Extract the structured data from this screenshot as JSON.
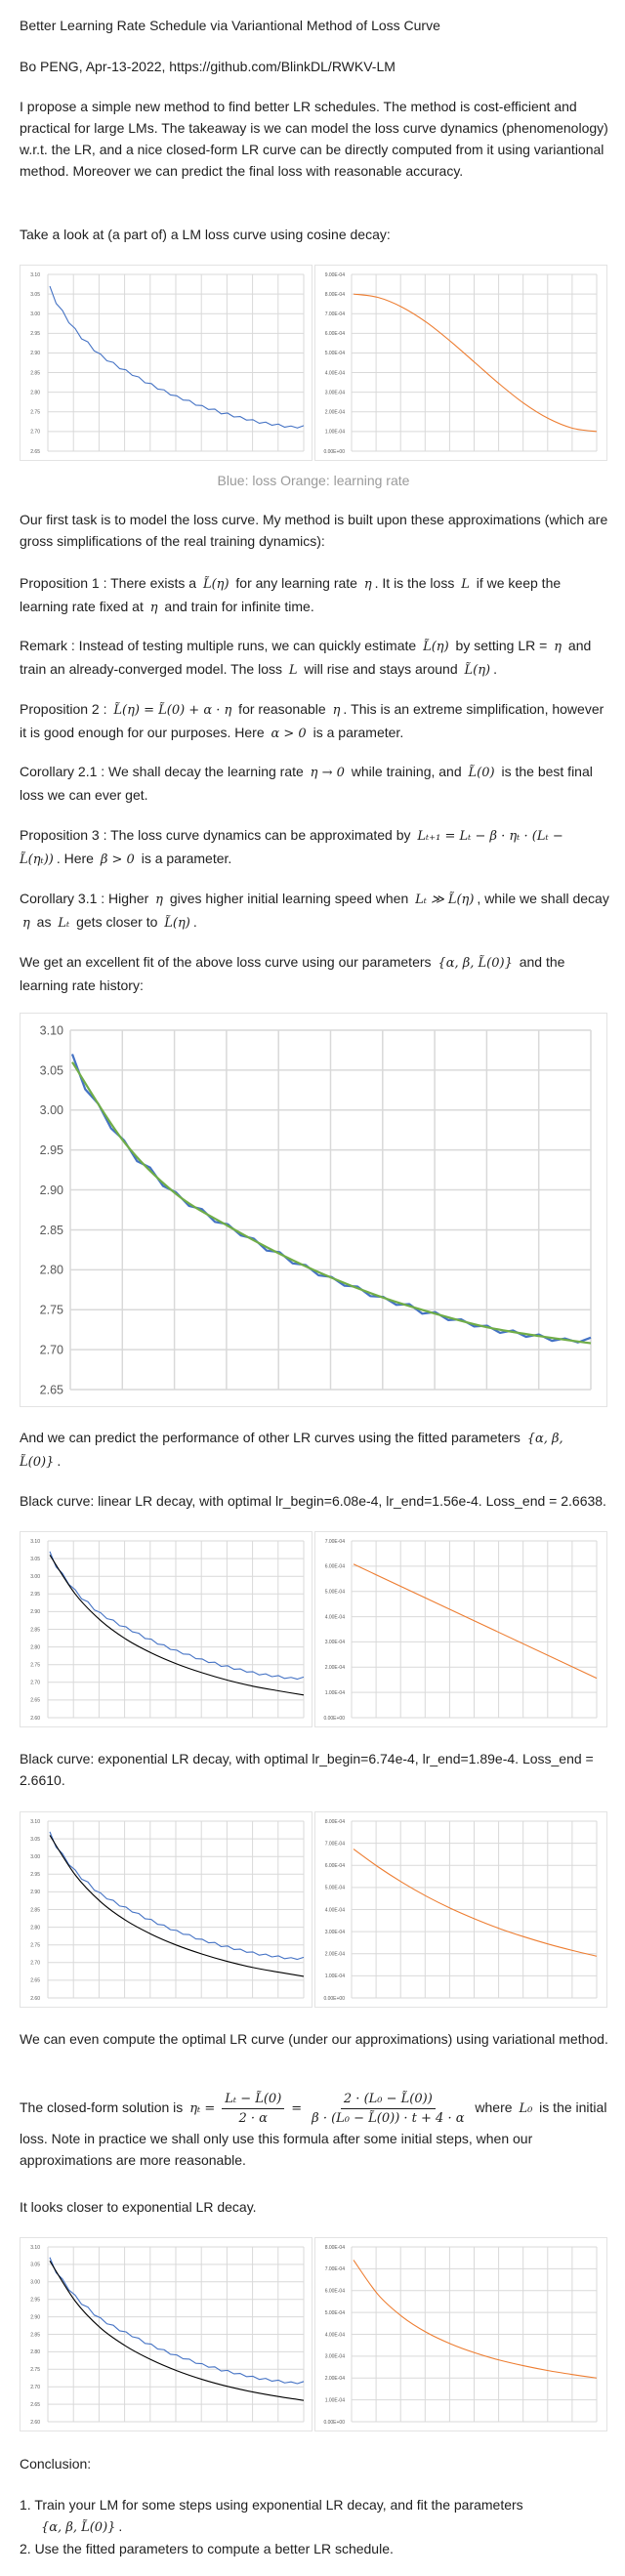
{
  "title": "Better Learning Rate Schedule via Variantional Method of Loss Curve",
  "byline": "Bo PENG, Apr-13-2022, https://github.com/BlinkDL/RWKV-LM",
  "intro": "I propose a simple new method to find better LR schedules. The method is cost-efficient and practical for large LMs. The takeaway is we can model the loss curve dynamics (phenomenology) w.r.t. the LR, and a nice closed-form LR curve can be directly computed from it using variantional method. Moreover we can predict the final loss with reasonable accuracy.",
  "take_look": "Take a look at (a part of) a LM loss curve using cosine decay:",
  "caption": "Blue: loss Orange: learning rate",
  "first_task": "Our first task is to model the loss curve. My method is built upon these approximations (which are gross simplifications of the real training dynamics):",
  "prop1": [
    {
      "text": "Proposition 1 : There exists a "
    },
    {
      "text": "L̃(η)",
      "math": true
    },
    {
      "text": " for any learning rate "
    },
    {
      "text": "η",
      "math": true
    },
    {
      "text": ". It is the loss "
    },
    {
      "text": "L",
      "math": true
    },
    {
      "text": " if we keep the learning rate fixed at "
    },
    {
      "text": "η",
      "math": true
    },
    {
      "text": " and train for infinite time."
    }
  ],
  "remark": [
    {
      "text": "Remark : Instead of testing multiple runs, we can quickly estimate "
    },
    {
      "text": "L̃(η)",
      "math": true
    },
    {
      "text": " by setting LR = "
    },
    {
      "text": "η",
      "math": true
    },
    {
      "text": " and train an already-converged model. The loss "
    },
    {
      "text": "L",
      "math": true
    },
    {
      "text": " will rise and stays around "
    },
    {
      "text": "L̃(η)",
      "math": true
    },
    {
      "text": "."
    }
  ],
  "prop2": [
    {
      "text": "Proposition 2 : "
    },
    {
      "text": "L̃(η) = L̃(0) + α · η",
      "math": true
    },
    {
      "text": " for reasonable "
    },
    {
      "text": "η",
      "math": true
    },
    {
      "text": ". This is an extreme simplification, however it is good enough for our purposes. Here "
    },
    {
      "text": "α > 0",
      "math": true
    },
    {
      "text": " is a parameter."
    }
  ],
  "cor21": [
    {
      "text": "Corollary 2.1 : We shall decay the learning rate "
    },
    {
      "text": "η → 0",
      "math": true
    },
    {
      "text": " while training, and "
    },
    {
      "text": "L̃(0)",
      "math": true
    },
    {
      "text": " is the best final loss we can ever get."
    }
  ],
  "prop3": [
    {
      "text": "Proposition 3 : The loss curve dynamics can be approximated by "
    },
    {
      "text": "Lₜ₊₁ = Lₜ − β · ηₜ · (Lₜ − L̃(ηₜ))",
      "math": true
    },
    {
      "text": ". Here "
    },
    {
      "text": "β > 0",
      "math": true
    },
    {
      "text": " is a parameter."
    }
  ],
  "cor31": [
    {
      "text": "Corollary 3.1 : Higher "
    },
    {
      "text": "η",
      "math": true
    },
    {
      "text": " gives higher initial learning speed when "
    },
    {
      "text": "Lₜ ≫ L̃(η)",
      "math": true
    },
    {
      "text": ", while we shall decay "
    },
    {
      "text": "η",
      "math": true
    },
    {
      "text": " as "
    },
    {
      "text": "Lₜ",
      "math": true
    },
    {
      "text": " gets closer to "
    },
    {
      "text": "L̃(η)",
      "math": true
    },
    {
      "text": "."
    }
  ],
  "fit": [
    {
      "text": "We get an excellent fit of the above loss curve using our parameters "
    },
    {
      "text": "{α, β, L̃(0)}",
      "math": true
    },
    {
      "text": " and the learning rate history:"
    }
  ],
  "predict": [
    {
      "text": "And we can predict the performance of other LR curves using the fitted parameters "
    },
    {
      "text": "{α, β, L̃(0)}",
      "math": true
    },
    {
      "text": "."
    }
  ],
  "linear_text": "Black curve: linear LR decay, with optimal lr_begin=6.08e-4, lr_end=1.56e-4. Loss_end = 2.6638.",
  "exp_text": "Black curve: exponential LR decay, with optimal lr_begin=6.74e-4, lr_end=1.89e-4. Loss_end = 2.6610.",
  "even_text": "We can even compute the optimal LR curve (under our approximations) using variational method.",
  "closed_form": {
    "prefix": "The closed-form solution is",
    "lhs": "ηₜ =",
    "frac1_num": "Lₜ − L̃(0)",
    "frac1_den": "2 · α",
    "eq": "=",
    "frac2_num": "2 · (L₀ − L̃(0))",
    "frac2_den": "β · (L₀ − L̃(0)) · t + 4 · α",
    "where": " where ",
    "l0": "L₀",
    "suffix": " is the initial loss. Note in practice we shall only use this formula after some initial steps, when our approximations are more reasonable."
  },
  "looks_text": "It looks closer to exponential LR decay.",
  "conclusion": "Conclusion:",
  "steps": [
    {
      "text": "1. Train your LM for some steps using exponential LR decay, and fit the parameters",
      "math": "{α, β, L̃(0)}",
      "end": "."
    },
    {
      "text": "2. Use the fitted parameters to compute a better LR schedule."
    }
  ],
  "colors": {
    "loss": "#4472c4",
    "lr": "#ed7d31",
    "fit": "#70ad47",
    "predicted": "#000000",
    "grid": "#d9d9d9"
  },
  "chart_data": [
    {
      "id": "cosine-loss",
      "type": "line",
      "ylim": [
        2.65,
        3.1
      ],
      "yticks": [
        "2.65",
        "2.70",
        "2.75",
        "2.80",
        "2.85",
        "2.90",
        "2.95",
        "3.00",
        "3.05",
        "3.10"
      ],
      "grid": true,
      "series": [
        {
          "color": "#4472c4",
          "values": [
            3.07,
            3.026,
            3.008,
            2.977,
            2.962,
            2.936,
            2.928,
            2.905,
            2.897,
            2.88,
            2.876,
            2.86,
            2.857,
            2.843,
            2.839,
            2.824,
            2.822,
            2.808,
            2.806,
            2.793,
            2.791,
            2.78,
            2.779,
            2.767,
            2.766,
            2.756,
            2.757,
            2.745,
            2.747,
            2.737,
            2.738,
            2.729,
            2.73,
            2.721,
            2.724,
            2.716,
            2.719,
            2.711,
            2.714,
            2.709,
            2.715
          ]
        }
      ]
    },
    {
      "id": "cosine-lr",
      "type": "line",
      "ylim": [
        0,
        0.0009
      ],
      "yticks": [
        "0.00E+00",
        "1.00E-04",
        "2.00E-04",
        "3.00E-04",
        "4.00E-04",
        "5.00E-04",
        "6.00E-04",
        "7.00E-04",
        "8.00E-04",
        "9.00E-04"
      ],
      "grid": true,
      "series": [
        {
          "color": "#ed7d31",
          "smooth": true,
          "values": [
            0.0008,
            0.000783,
            0.000733,
            0.000656,
            0.000558,
            0.00045,
            0.000342,
            0.000244,
            0.000167,
            0.000117,
            0.0001
          ]
        }
      ]
    },
    {
      "id": "fit-loss",
      "type": "line",
      "ylim": [
        2.65,
        3.1
      ],
      "yticks": [
        "2.65",
        "2.70",
        "2.75",
        "2.80",
        "2.85",
        "2.90",
        "2.95",
        "3.00",
        "3.05",
        "3.10"
      ],
      "grid": true,
      "series": [
        {
          "color": "#4472c4",
          "values": [
            3.07,
            3.026,
            3.008,
            2.977,
            2.962,
            2.936,
            2.928,
            2.905,
            2.897,
            2.88,
            2.876,
            2.86,
            2.857,
            2.843,
            2.839,
            2.824,
            2.822,
            2.808,
            2.806,
            2.793,
            2.791,
            2.78,
            2.779,
            2.767,
            2.766,
            2.756,
            2.757,
            2.745,
            2.747,
            2.737,
            2.738,
            2.729,
            2.73,
            2.721,
            2.724,
            2.716,
            2.719,
            2.711,
            2.714,
            2.709,
            2.715
          ]
        },
        {
          "color": "#70ad47",
          "smooth": true,
          "values": [
            3.06,
            2.96,
            2.895,
            2.855,
            2.82,
            2.79,
            2.765,
            2.745,
            2.728,
            2.717,
            2.708
          ]
        }
      ]
    },
    {
      "id": "linear-loss",
      "type": "line",
      "ylim": [
        2.6,
        3.1
      ],
      "yticks": [
        "2.60",
        "2.65",
        "2.70",
        "2.75",
        "2.80",
        "2.85",
        "2.90",
        "2.95",
        "3.00",
        "3.05",
        "3.10"
      ],
      "grid": true,
      "series": [
        {
          "color": "#4472c4",
          "values": [
            3.07,
            3.026,
            3.008,
            2.977,
            2.962,
            2.936,
            2.928,
            2.905,
            2.897,
            2.88,
            2.876,
            2.86,
            2.857,
            2.843,
            2.839,
            2.824,
            2.822,
            2.808,
            2.806,
            2.793,
            2.791,
            2.78,
            2.779,
            2.767,
            2.766,
            2.756,
            2.757,
            2.745,
            2.747,
            2.737,
            2.738,
            2.729,
            2.73,
            2.721,
            2.724,
            2.716,
            2.719,
            2.711,
            2.714,
            2.709,
            2.715
          ]
        },
        {
          "color": "#000000",
          "smooth": true,
          "values": [
            3.06,
            2.95,
            2.875,
            2.822,
            2.783,
            2.752,
            2.727,
            2.706,
            2.689,
            2.676,
            2.664
          ]
        }
      ]
    },
    {
      "id": "linear-lr",
      "type": "line",
      "ylim": [
        0,
        0.0007
      ],
      "yticks": [
        "0.00E+00",
        "1.00E-04",
        "2.00E-04",
        "3.00E-04",
        "4.00E-04",
        "5.00E-04",
        "6.00E-04",
        "7.00E-04"
      ],
      "grid": true,
      "series": [
        {
          "color": "#ed7d31",
          "values": [
            0.000608,
            0.000156
          ]
        }
      ]
    },
    {
      "id": "exp-loss",
      "type": "line",
      "ylim": [
        2.6,
        3.1
      ],
      "yticks": [
        "2.60",
        "2.65",
        "2.70",
        "2.75",
        "2.80",
        "2.85",
        "2.90",
        "2.95",
        "3.00",
        "3.05",
        "3.10"
      ],
      "grid": true,
      "series": [
        {
          "color": "#4472c4",
          "values": [
            3.07,
            3.026,
            3.008,
            2.977,
            2.962,
            2.936,
            2.928,
            2.905,
            2.897,
            2.88,
            2.876,
            2.86,
            2.857,
            2.843,
            2.839,
            2.824,
            2.822,
            2.808,
            2.806,
            2.793,
            2.791,
            2.78,
            2.779,
            2.767,
            2.766,
            2.756,
            2.757,
            2.745,
            2.747,
            2.737,
            2.738,
            2.729,
            2.73,
            2.721,
            2.724,
            2.716,
            2.719,
            2.711,
            2.714,
            2.709,
            2.715
          ]
        },
        {
          "color": "#000000",
          "smooth": true,
          "values": [
            3.06,
            2.948,
            2.872,
            2.819,
            2.78,
            2.749,
            2.724,
            2.703,
            2.686,
            2.673,
            2.661
          ]
        }
      ]
    },
    {
      "id": "exp-lr",
      "type": "line",
      "ylim": [
        0,
        0.0008
      ],
      "yticks": [
        "0.00E+00",
        "1.00E-04",
        "2.00E-04",
        "3.00E-04",
        "4.00E-04",
        "5.00E-04",
        "6.00E-04",
        "7.00E-04",
        "8.00E-04"
      ],
      "grid": true,
      "series": [
        {
          "color": "#ed7d31",
          "smooth": true,
          "values": [
            0.000674,
            0.000594,
            0.000523,
            0.00046,
            0.000405,
            0.000357,
            0.000314,
            0.000277,
            0.000244,
            0.000215,
            0.000189
          ]
        }
      ]
    },
    {
      "id": "optimal-loss",
      "type": "line",
      "ylim": [
        2.6,
        3.1
      ],
      "yticks": [
        "2.60",
        "2.65",
        "2.70",
        "2.75",
        "2.80",
        "2.85",
        "2.90",
        "2.95",
        "3.00",
        "3.05",
        "3.10"
      ],
      "grid": true,
      "series": [
        {
          "color": "#4472c4",
          "values": [
            3.07,
            3.026,
            3.008,
            2.977,
            2.962,
            2.936,
            2.928,
            2.905,
            2.897,
            2.88,
            2.876,
            2.86,
            2.857,
            2.843,
            2.839,
            2.824,
            2.822,
            2.808,
            2.806,
            2.793,
            2.791,
            2.78,
            2.779,
            2.767,
            2.766,
            2.756,
            2.757,
            2.745,
            2.747,
            2.737,
            2.738,
            2.729,
            2.73,
            2.721,
            2.724,
            2.716,
            2.719,
            2.711,
            2.714,
            2.709,
            2.715
          ]
        },
        {
          "color": "#000000",
          "smooth": true,
          "values": [
            3.06,
            2.945,
            2.868,
            2.816,
            2.777,
            2.746,
            2.721,
            2.701,
            2.685,
            2.672,
            2.661
          ]
        }
      ]
    },
    {
      "id": "optimal-lr",
      "type": "line",
      "ylim": [
        0,
        0.0008
      ],
      "yticks": [
        "0.00E+00",
        "1.00E-04",
        "2.00E-04",
        "3.00E-04",
        "4.00E-04",
        "5.00E-04",
        "6.00E-04",
        "7.00E-04",
        "8.00E-04"
      ],
      "grid": true,
      "series": [
        {
          "color": "#ed7d31",
          "smooth": true,
          "values": [
            0.00074,
            0.000583,
            0.000481,
            0.000409,
            0.000356,
            0.000315,
            0.000282,
            0.000256,
            0.000234,
            0.000216,
            0.0002
          ]
        }
      ]
    }
  ]
}
